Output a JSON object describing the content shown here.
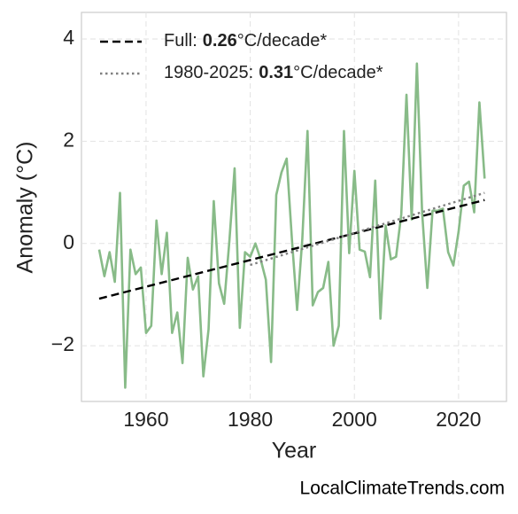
{
  "chart_data": {
    "type": "line",
    "xlabel": "Year",
    "ylabel": "Anomaly (°C)",
    "footer": "LocalClimateTrends.com",
    "xlim": [
      1947.6,
      2029.2
    ],
    "ylim": [
      -3.09,
      4.52
    ],
    "xticks": [
      1960,
      1980,
      2000,
      2020
    ],
    "yticks": [
      {
        "value": -2,
        "label": "−2"
      },
      0,
      2,
      4
    ],
    "grid": true,
    "legend": "upper left",
    "x": [
      1951,
      1952,
      1953,
      1954,
      1955,
      1956,
      1957,
      1958,
      1959,
      1960,
      1961,
      1962,
      1963,
      1964,
      1965,
      1966,
      1967,
      1968,
      1969,
      1970,
      1971,
      1972,
      1973,
      1974,
      1975,
      1976,
      1977,
      1978,
      1979,
      1980,
      1981,
      1982,
      1983,
      1984,
      1985,
      1986,
      1987,
      1988,
      1989,
      1990,
      1991,
      1992,
      1993,
      1994,
      1995,
      1996,
      1997,
      1998,
      1999,
      2000,
      2001,
      2002,
      2003,
      2004,
      2005,
      2006,
      2007,
      2008,
      2009,
      2010,
      2011,
      2012,
      2013,
      2014,
      2015,
      2016,
      2017,
      2018,
      2019,
      2020,
      2021,
      2022,
      2023,
      2024,
      2025
    ],
    "series": [
      {
        "color": "#88bb88",
        "style": "solid",
        "values": [
          -0.12,
          -0.64,
          -0.17,
          -0.75,
          0.99,
          -2.82,
          -0.12,
          -0.6,
          -0.47,
          -1.75,
          -1.61,
          0.45,
          -0.6,
          0.21,
          -1.75,
          -1.35,
          -2.34,
          -0.28,
          -0.9,
          -0.64,
          -2.6,
          -1.68,
          0.83,
          -0.78,
          -1.18,
          0.05,
          1.47,
          -1.65,
          -0.17,
          -0.26,
          0.0,
          -0.31,
          -0.71,
          -2.32,
          0.95,
          1.39,
          1.66,
          0.09,
          -1.3,
          0.09,
          2.2,
          -1.21,
          -0.95,
          -0.87,
          -0.36,
          -2.0,
          -1.61,
          2.2,
          -0.19,
          1.42,
          -0.12,
          -0.16,
          -0.66,
          1.23,
          -1.47,
          0.35,
          -0.31,
          -0.26,
          0.57,
          2.91,
          0.47,
          3.52,
          0.61,
          -0.87,
          0.64,
          0.64,
          0.68,
          -0.17,
          -0.43,
          0.23,
          1.13,
          1.21,
          0.61,
          2.76,
          1.27
        ]
      },
      {
        "color": "#000000",
        "style": "dashed",
        "x": [
          1951,
          2025
        ],
        "values": [
          -1.08,
          0.85
        ],
        "label_prefix": "Full:",
        "rate": 0.26,
        "unit": "°C/decade*"
      },
      {
        "color": "#808080",
        "style": "dotted",
        "x": [
          1980,
          2025
        ],
        "values": [
          -0.42,
          0.99
        ],
        "label_prefix": "1980-2025:",
        "rate": 0.31,
        "unit": "°C/decade*"
      }
    ]
  }
}
